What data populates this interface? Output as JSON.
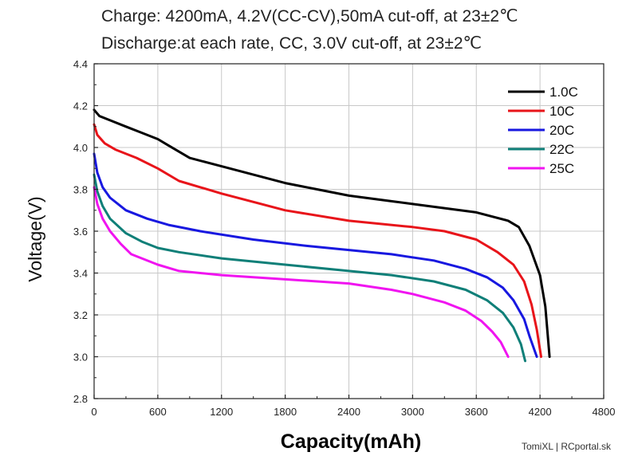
{
  "header": {
    "line1": "Charge: 4200mA, 4.2V(CC-CV),50mA cut-off, at 23±2℃",
    "line2": "Discharge:at each rate, CC, 3.0V cut-off, at 23±2℃"
  },
  "credit": "TomiXL | RCportal.sk",
  "chart_data": {
    "type": "line",
    "xlabel": "Capacity(mAh)",
    "ylabel": "Voltage(V)",
    "xlim": [
      0,
      4800
    ],
    "ylim": [
      2.8,
      4.4
    ],
    "x_ticks": [
      "0",
      "600",
      "1200",
      "1800",
      "2400",
      "3000",
      "3600",
      "4200",
      "4800"
    ],
    "y_ticks": [
      "2.8",
      "3.0",
      "3.2",
      "3.4",
      "3.6",
      "3.8",
      "4.0",
      "4.2",
      "4.4"
    ],
    "grid": true,
    "legend_position": "top-right",
    "series": [
      {
        "name": "1.0C",
        "color": "#000000",
        "x": [
          0,
          50,
          150,
          300,
          450,
          600,
          700,
          900,
          1200,
          1500,
          1800,
          2100,
          2400,
          2700,
          3000,
          3300,
          3600,
          3900,
          4000,
          4100,
          4200,
          4250,
          4290
        ],
        "y": [
          4.18,
          4.15,
          4.13,
          4.1,
          4.07,
          4.04,
          4.01,
          3.95,
          3.91,
          3.87,
          3.83,
          3.8,
          3.77,
          3.75,
          3.73,
          3.71,
          3.69,
          3.65,
          3.62,
          3.53,
          3.39,
          3.24,
          3.0
        ]
      },
      {
        "name": "10C",
        "color": "#e8141a",
        "x": [
          0,
          30,
          100,
          200,
          400,
          600,
          800,
          1200,
          1800,
          2400,
          3000,
          3300,
          3600,
          3800,
          3950,
          4050,
          4120,
          4170,
          4210
        ],
        "y": [
          4.11,
          4.06,
          4.02,
          3.99,
          3.95,
          3.9,
          3.84,
          3.78,
          3.7,
          3.65,
          3.62,
          3.6,
          3.56,
          3.5,
          3.44,
          3.36,
          3.25,
          3.13,
          3.0
        ]
      },
      {
        "name": "20C",
        "color": "#1818e0",
        "x": [
          0,
          30,
          80,
          150,
          300,
          500,
          700,
          1000,
          1500,
          2000,
          2400,
          2800,
          3200,
          3500,
          3700,
          3850,
          3950,
          4050,
          4100,
          4170
        ],
        "y": [
          3.97,
          3.88,
          3.81,
          3.76,
          3.7,
          3.66,
          3.63,
          3.6,
          3.56,
          3.53,
          3.51,
          3.49,
          3.46,
          3.42,
          3.38,
          3.33,
          3.27,
          3.18,
          3.1,
          3.0
        ]
      },
      {
        "name": "22C",
        "color": "#0f7f78",
        "x": [
          0,
          30,
          80,
          150,
          300,
          450,
          600,
          800,
          1200,
          1800,
          2400,
          2800,
          3200,
          3500,
          3700,
          3850,
          3950,
          4020,
          4060
        ],
        "y": [
          3.87,
          3.79,
          3.72,
          3.66,
          3.59,
          3.55,
          3.52,
          3.5,
          3.47,
          3.44,
          3.41,
          3.39,
          3.36,
          3.32,
          3.27,
          3.21,
          3.14,
          3.06,
          2.98
        ]
      },
      {
        "name": "25C",
        "color": "#f014f0",
        "x": [
          0,
          30,
          80,
          150,
          250,
          350,
          450,
          600,
          800,
          1200,
          1800,
          2400,
          2800,
          3000,
          3300,
          3500,
          3650,
          3750,
          3830,
          3900
        ],
        "y": [
          3.81,
          3.73,
          3.66,
          3.6,
          3.54,
          3.49,
          3.47,
          3.44,
          3.41,
          3.39,
          3.37,
          3.35,
          3.32,
          3.3,
          3.26,
          3.22,
          3.17,
          3.12,
          3.07,
          3.0
        ]
      }
    ]
  }
}
